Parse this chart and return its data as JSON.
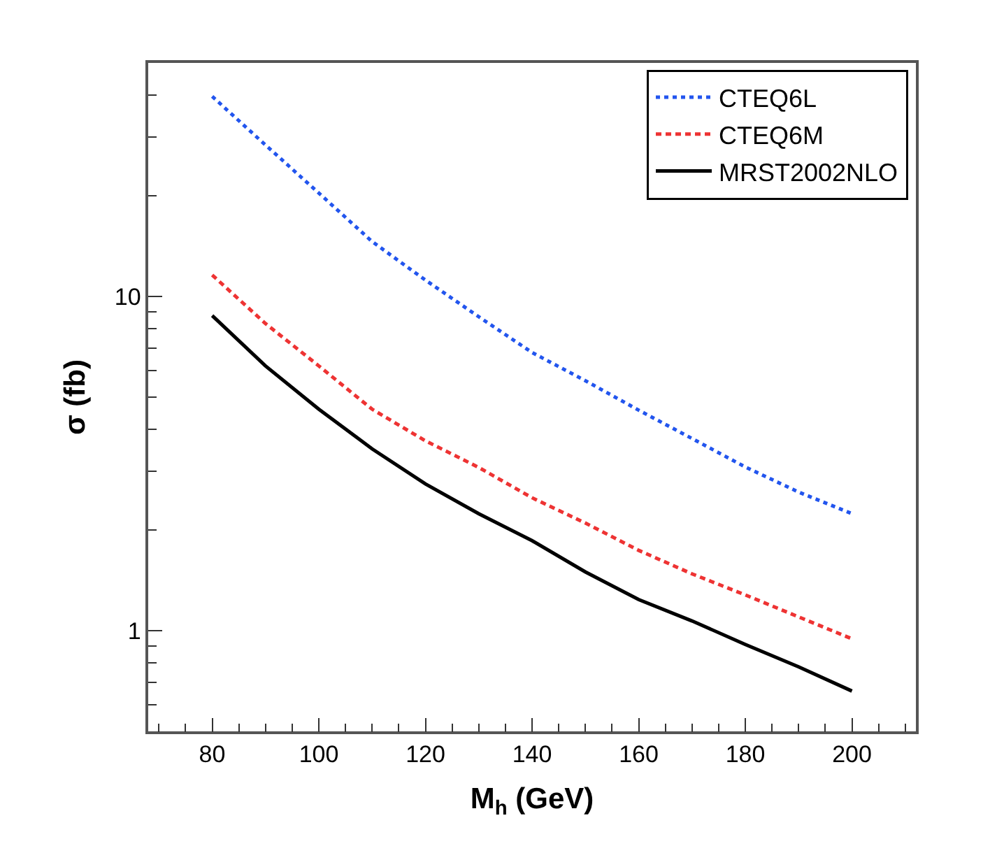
{
  "chart_data": {
    "type": "line",
    "xlabel": "M$_{h}$ (GeV)",
    "ylabel": "σ (fb)",
    "x": [
      80,
      90,
      100,
      110,
      120,
      130,
      140,
      150,
      160,
      170,
      180,
      190,
      200
    ],
    "series": [
      {
        "name": "CTEQ6L",
        "color": "#2255ee",
        "line_style": "dotted",
        "values": [
          39.7,
          28.4,
          20.4,
          14.6,
          11.2,
          8.7,
          6.8,
          5.6,
          4.57,
          3.76,
          3.09,
          2.6,
          2.24
        ]
      },
      {
        "name": "CTEQ6M",
        "color": "#ee3333",
        "line_style": "dashed",
        "values": [
          11.6,
          8.3,
          6.2,
          4.6,
          3.7,
          3.08,
          2.5,
          2.1,
          1.74,
          1.48,
          1.28,
          1.1,
          0.946
        ]
      },
      {
        "name": "MRST2002NLO",
        "color": "#000000",
        "line_style": "solid",
        "values": [
          8.77,
          6.2,
          4.6,
          3.5,
          2.75,
          2.24,
          1.86,
          1.5,
          1.24,
          1.07,
          0.91,
          0.78,
          0.66
        ]
      }
    ],
    "xlim": [
      68,
      212
    ],
    "xticks": [
      {
        "value": 70,
        "label": null
      },
      {
        "value": 75,
        "label": null
      },
      80,
      {
        "value": 85,
        "label": null
      },
      {
        "value": 90,
        "label": null
      },
      {
        "value": 95,
        "label": null
      },
      100,
      {
        "value": 105,
        "label": null
      },
      {
        "value": 110,
        "label": null
      },
      {
        "value": 115,
        "label": null
      },
      120,
      {
        "value": 125,
        "label": null
      },
      {
        "value": 130,
        "label": null
      },
      {
        "value": 135,
        "label": null
      },
      140,
      {
        "value": 145,
        "label": null
      },
      {
        "value": 150,
        "label": null
      },
      {
        "value": 155,
        "label": null
      },
      160,
      {
        "value": 165,
        "label": null
      },
      {
        "value": 170,
        "label": null
      },
      {
        "value": 175,
        "label": null
      },
      180,
      {
        "value": 185,
        "label": null
      },
      {
        "value": 190,
        "label": null
      },
      {
        "value": 195,
        "label": null
      },
      200,
      {
        "value": 205,
        "label": null
      },
      {
        "value": 210,
        "label": null
      }
    ],
    "ylim": [
      0.5,
      50
    ],
    "yticks": [
      {
        "value": 0.6,
        "label": null
      },
      {
        "value": 0.7,
        "label": null
      },
      {
        "value": 0.8,
        "label": null
      },
      {
        "value": 0.9,
        "label": null
      },
      1,
      {
        "value": 2,
        "label": null
      },
      {
        "value": 3,
        "label": null
      },
      {
        "value": 4,
        "label": null
      },
      {
        "value": 5,
        "label": null
      },
      {
        "value": 6,
        "label": null
      },
      {
        "value": 7,
        "label": null
      },
      {
        "value": 8,
        "label": null
      },
      {
        "value": 9,
        "label": null
      },
      10,
      {
        "value": 20,
        "label": null
      },
      {
        "value": 30,
        "label": null
      },
      {
        "value": 40,
        "label": null
      }
    ],
    "log": "y",
    "legend": "top right",
    "marker": "none"
  }
}
